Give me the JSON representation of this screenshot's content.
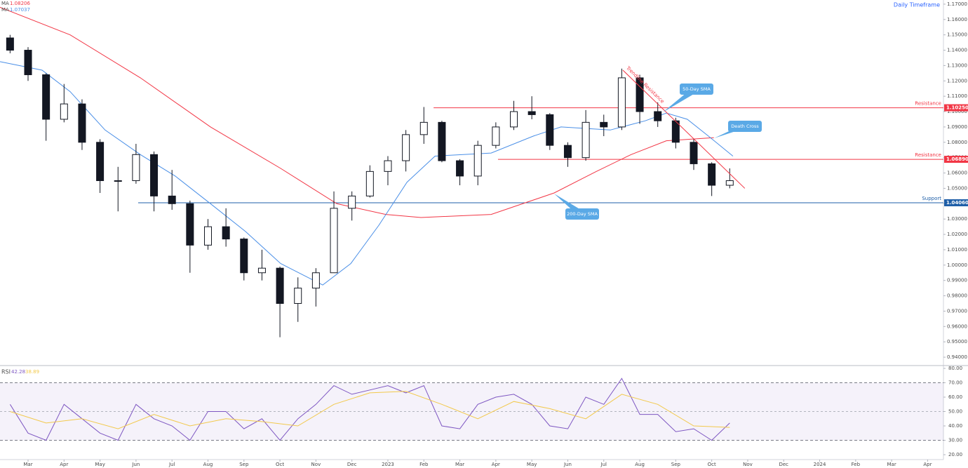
{
  "chart_data": [
    {
      "type": "candlestick",
      "title": "Daily Timeframe",
      "color": "#131722",
      "xlim": [
        1.22,
        27.44
      ],
      "ylim": [
        0.935,
        1.1727
      ],
      "yticks": [
        {
          "value": 1.17,
          "label": "1.17000"
        },
        {
          "value": 1.16,
          "label": "1.16000"
        },
        {
          "value": 1.15,
          "label": "1.15000"
        },
        {
          "value": 1.14,
          "label": "1.14000"
        },
        {
          "value": 1.13,
          "label": "1.13000"
        },
        {
          "value": 1.12,
          "label": "1.12000"
        },
        {
          "value": 1.11,
          "label": "1.11000"
        },
        {
          "value": 1.1,
          "label": "1.10000"
        },
        {
          "value": 1.09,
          "label": "1.09000"
        },
        {
          "value": 1.08,
          "label": "1.08000"
        },
        {
          "value": 1.07,
          "label": "1.07000"
        },
        {
          "value": 1.06,
          "label": "1.06000"
        },
        {
          "value": 1.05,
          "label": "1.05000"
        },
        {
          "value": 1.04,
          "label": "1.04000"
        },
        {
          "value": 1.03,
          "label": "1.03000"
        },
        {
          "value": 1.02,
          "label": "1.02000"
        },
        {
          "value": 1.01,
          "label": "1.01000"
        },
        {
          "value": 1,
          "label": "1.00000"
        },
        {
          "value": 0.99,
          "label": "0.99000"
        },
        {
          "value": 0.98,
          "label": "0.98000"
        },
        {
          "value": 0.97,
          "label": "0.97000"
        },
        {
          "value": 0.96,
          "label": "0.96000"
        },
        {
          "value": 0.95,
          "label": "0.95000"
        },
        {
          "value": 0.94,
          "label": "0.94000"
        }
      ],
      "x": [
        1.5,
        2,
        2.5,
        3,
        3.5,
        4,
        4.5,
        5,
        5.5,
        6,
        6.5,
        7,
        7.5,
        8,
        8.5,
        9,
        9.5,
        10,
        10.5,
        11,
        11.5,
        12,
        12.5,
        13,
        13.5,
        14,
        14.5,
        15,
        15.5,
        16,
        16.5,
        17,
        17.5,
        18,
        18.5,
        19,
        19.5,
        20,
        20.5,
        21,
        21.5
      ],
      "open": [
        1.148,
        1.14,
        1.124,
        1.095,
        1.105,
        1.08,
        1.055,
        1.055,
        1.072,
        1.045,
        1.04,
        1.013,
        1.025,
        1.017,
        0.995,
        0.998,
        0.975,
        0.985,
        0.995,
        1.037,
        1.045,
        1.061,
        1.068,
        1.085,
        1.093,
        1.068,
        1.058,
        1.078,
        1.09,
        1.1,
        1.098,
        1.078,
        1.07,
        1.093,
        1.09,
        1.122,
        1.1,
        1.094,
        1.08,
        1.066,
        1.052
      ],
      "high": [
        1.15,
        1.142,
        1.125,
        1.118,
        1.108,
        1.082,
        1.064,
        1.079,
        1.074,
        1.062,
        1.042,
        1.03,
        1.037,
        1.018,
        1.01,
        0.999,
        0.992,
        0.998,
        1.048,
        1.048,
        1.065,
        1.071,
        1.088,
        1.103,
        1.094,
        1.069,
        1.081,
        1.093,
        1.107,
        1.11,
        1.099,
        1.08,
        1.101,
        1.098,
        1.128,
        1.124,
        1.106,
        1.096,
        1.082,
        1.067,
        1.063
      ],
      "low": [
        1.138,
        1.12,
        1.081,
        1.093,
        1.075,
        1.047,
        1.035,
        1.053,
        1.035,
        1.036,
        0.995,
        1.01,
        1.012,
        0.99,
        0.99,
        0.953,
        0.963,
        0.973,
        0.995,
        1.029,
        1.044,
        1.052,
        1.061,
        1.079,
        1.067,
        1.052,
        1.052,
        1.076,
        1.088,
        1.095,
        1.075,
        1.064,
        1.068,
        1.084,
        1.088,
        1.092,
        1.09,
        1.076,
        1.062,
        1.045,
        1.05
      ],
      "close": [
        1.14,
        1.124,
        1.095,
        1.105,
        1.08,
        1.055,
        1.055,
        1.072,
        1.045,
        1.04,
        1.013,
        1.025,
        1.017,
        0.995,
        0.998,
        0.975,
        0.985,
        0.995,
        1.037,
        1.045,
        1.061,
        1.068,
        1.085,
        1.093,
        1.068,
        1.058,
        1.078,
        1.09,
        1.1,
        1.098,
        1.078,
        1.07,
        1.093,
        1.09,
        1.122,
        1.1,
        1.094,
        1.08,
        1.066,
        1.052,
        1.055
      ],
      "lines": [
        {
          "label": "MA",
          "value": 1.08206,
          "color": "#f23645",
          "x": [
            1.22,
            3.17,
            5.12,
            7.07,
            9.02,
            10.58,
            11.94,
            12.92,
            14.87,
            16.62,
            17.79,
            18.76,
            19.74,
            21.06
          ],
          "values": [
            1.168,
            1.15,
            1.122,
            1.09,
            1.063,
            1.04,
            1.033,
            1.031,
            1.033,
            1.047,
            1.061,
            1.072,
            1.081,
            1.083
          ]
        },
        {
          "label": "MA",
          "value": 1.07037,
          "color": "#4a8fe7",
          "x": [
            1.22,
            2.39,
            3.17,
            4.14,
            5.12,
            6.09,
            7.07,
            8.04,
            9.02,
            10.19,
            10.97,
            11.75,
            12.53,
            13.31,
            14.87,
            16.04,
            16.81,
            18.18,
            19.15,
            19.74,
            20.32,
            20.91,
            21.59
          ],
          "values": [
            1.1325,
            1.127,
            1.113,
            1.088,
            1.072,
            1.058,
            1.04,
            1.022,
            1.001,
            0.987,
            1.001,
            1.026,
            1.054,
            1.071,
            1.073,
            1.084,
            1.09,
            1.088,
            1.094,
            1.099,
            1.095,
            1.084,
            1.071
          ]
        }
      ],
      "levels": [
        {
          "name": "Resistance",
          "value": 1.1025,
          "label": "1.10250",
          "x_start": 13.27,
          "color": "#f23645"
        },
        {
          "name": "Resistance",
          "value": 1.0689,
          "label": "1.06890",
          "x_start": 15.06,
          "color": "#f23645"
        },
        {
          "name": "Support",
          "value": 1.0406,
          "label": "1.04060",
          "x_start": 5.06,
          "color": "#1f5fa8"
        }
      ],
      "trendline": {
        "label": "Trendline Resistance",
        "x": [
          18.53,
          21.92
        ],
        "values": [
          1.127,
          1.05
        ],
        "color": "#f23645"
      },
      "callouts": [
        "50-Day SMA",
        "Death Cross",
        "200-Day SMA"
      ]
    },
    {
      "type": "line",
      "title": "RSI",
      "legend_values": [
        42.28,
        38.89
      ],
      "xlim": [
        1.22,
        27.44
      ],
      "ylim": [
        16.6,
        81.46
      ],
      "xticks": [
        {
          "value": 2,
          "label": "Mar"
        },
        {
          "value": 3,
          "label": "Apr"
        },
        {
          "value": 4,
          "label": "May"
        },
        {
          "value": 5,
          "label": "Jun"
        },
        {
          "value": 6,
          "label": "Jul"
        },
        {
          "value": 7,
          "label": "Aug"
        },
        {
          "value": 8,
          "label": "Sep"
        },
        {
          "value": 9,
          "label": "Oct"
        },
        {
          "value": 10,
          "label": "Nov"
        },
        {
          "value": 11,
          "label": "Dec"
        },
        {
          "value": 12,
          "label": "2023"
        },
        {
          "value": 13,
          "label": "Feb"
        },
        {
          "value": 14,
          "label": "Mar"
        },
        {
          "value": 15,
          "label": "Apr"
        },
        {
          "value": 16,
          "label": "May"
        },
        {
          "value": 17,
          "label": "Jun"
        },
        {
          "value": 18,
          "label": "Jul"
        },
        {
          "value": 19,
          "label": "Aug"
        },
        {
          "value": 20,
          "label": "Sep"
        },
        {
          "value": 21,
          "label": "Oct"
        },
        {
          "value": 22,
          "label": "Nov"
        },
        {
          "value": 23,
          "label": "Dec"
        },
        {
          "value": 24,
          "label": "2024"
        },
        {
          "value": 25,
          "label": "Feb"
        },
        {
          "value": 26,
          "label": "Mar"
        },
        {
          "value": 27,
          "label": "Apr"
        }
      ],
      "yticks": [
        {
          "value": 80,
          "label": "80.00"
        },
        {
          "value": 70,
          "label": "70.00"
        },
        {
          "value": 60,
          "label": "60.00"
        },
        {
          "value": 50,
          "label": "50.00"
        },
        {
          "value": 40,
          "label": "40.00"
        },
        {
          "value": 30,
          "label": "30.00"
        },
        {
          "value": 20,
          "label": "20.00"
        }
      ],
      "band": [
        30,
        70
      ],
      "midline": 50,
      "series": [
        {
          "color": "#7e57c2",
          "x": [
            1.5,
            2,
            2.5,
            3,
            3.5,
            4,
            4.5,
            5,
            5.5,
            6,
            6.5,
            7,
            7.5,
            8,
            8.5,
            9,
            9.5,
            10,
            10.5,
            11,
            11.5,
            12,
            12.5,
            13,
            13.5,
            14,
            14.5,
            15,
            15.5,
            16,
            16.5,
            17,
            17.5,
            18,
            18.5,
            19,
            19.5,
            20,
            20.5,
            21,
            21.5
          ],
          "values": [
            55,
            35,
            30,
            55,
            45,
            35,
            30,
            55,
            45,
            40,
            30,
            50,
            50,
            38,
            45,
            30,
            45,
            55,
            68,
            62,
            65,
            68,
            63,
            68,
            40,
            38,
            55,
            60,
            62,
            55,
            40,
            38,
            60,
            55,
            73,
            48,
            48,
            36,
            38,
            30,
            42
          ]
        },
        {
          "color": "#f2c94c",
          "x": [
            1.5,
            2.5,
            3.5,
            4.5,
            5.5,
            6.5,
            7.5,
            8.5,
            9.5,
            10.5,
            11.5,
            12.5,
            13.5,
            14.5,
            15.5,
            16.5,
            17.5,
            18.5,
            19.5,
            20.5,
            21.5
          ],
          "values": [
            50,
            42,
            45,
            38,
            48,
            40,
            45,
            43,
            40,
            55,
            63,
            64,
            55,
            45,
            57,
            52,
            45,
            62,
            55,
            40,
            39
          ]
        }
      ]
    }
  ]
}
